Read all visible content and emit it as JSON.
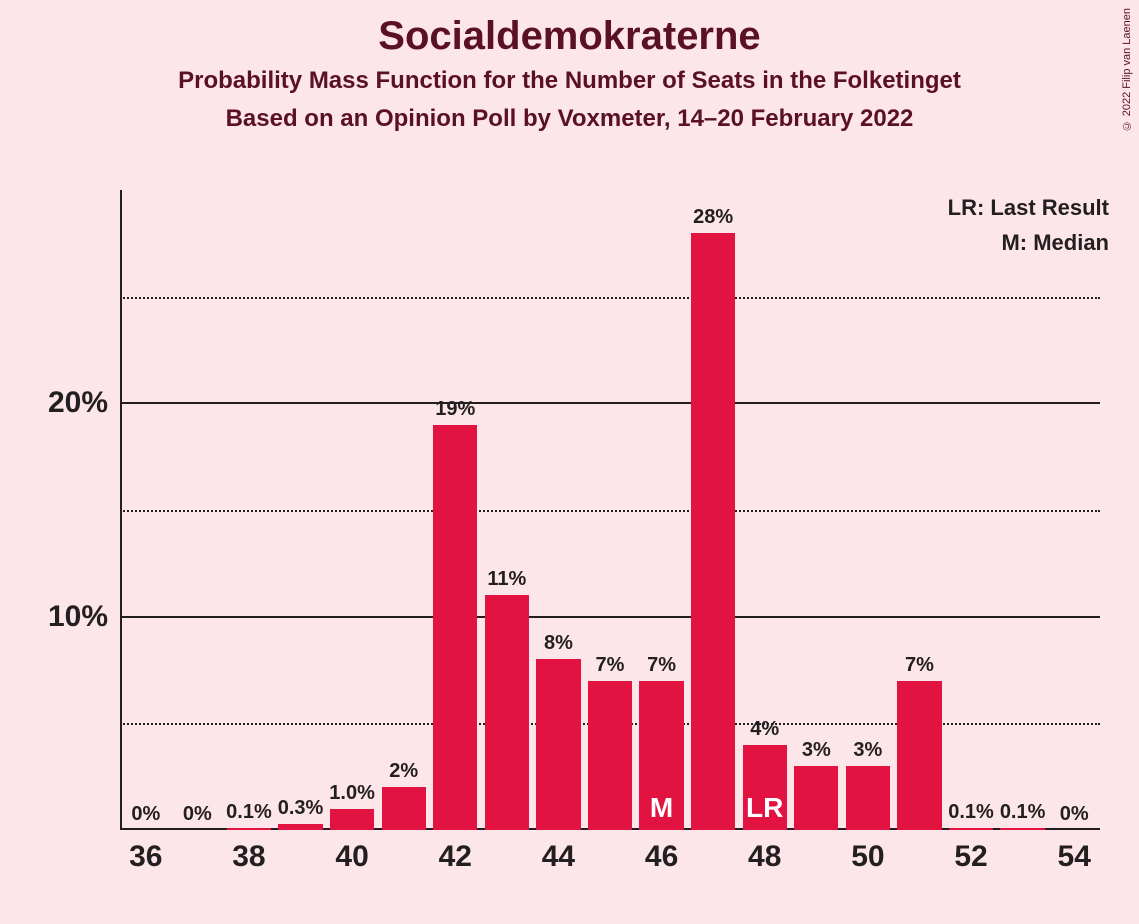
{
  "title": "Socialdemokraterne",
  "subtitle1": "Probability Mass Function for the Number of Seats in the Folketinget",
  "subtitle2": "Based on an Opinion Poll by Voxmeter, 14–20 February 2022",
  "copyright": "© 2022 Filip van Laenen",
  "legend": {
    "lr": "LR: Last Result",
    "m": "M: Median"
  },
  "chart": {
    "type": "bar",
    "bar_color": "#e21340",
    "background_color": "#fce6ea",
    "axis_color": "#231f20",
    "grid_dotted_color": "#231f20",
    "title_color": "#5a1025",
    "title_fontsize": 40,
    "subtitle_fontsize": 24,
    "label_fontsize": 20,
    "axis_tick_fontsize": 30,
    "marker_fontsize": 28,
    "marker_color": "#ffffff",
    "y": {
      "min": 0,
      "max": 30,
      "solid_ticks": [
        10,
        20
      ],
      "dotted_ticks": [
        5,
        15,
        25
      ],
      "tick_labels": {
        "10": "10%",
        "20": "20%"
      }
    },
    "x": {
      "min": 36,
      "max": 54,
      "tick_step": 2,
      "ticks": [
        36,
        38,
        40,
        42,
        44,
        46,
        48,
        50,
        52,
        54
      ]
    },
    "bar_width_ratio": 0.86,
    "bars": [
      {
        "x": 36,
        "value": 0,
        "label": "0%"
      },
      {
        "x": 37,
        "value": 0,
        "label": "0%"
      },
      {
        "x": 38,
        "value": 0.1,
        "label": "0.1%"
      },
      {
        "x": 39,
        "value": 0.3,
        "label": "0.3%"
      },
      {
        "x": 40,
        "value": 1.0,
        "label": "1.0%"
      },
      {
        "x": 41,
        "value": 2,
        "label": "2%"
      },
      {
        "x": 42,
        "value": 19,
        "label": "19%"
      },
      {
        "x": 43,
        "value": 11,
        "label": "11%"
      },
      {
        "x": 44,
        "value": 8,
        "label": "8%"
      },
      {
        "x": 45,
        "value": 7,
        "label": "7%"
      },
      {
        "x": 46,
        "value": 7,
        "label": "7%",
        "marker": "M"
      },
      {
        "x": 47,
        "value": 28,
        "label": "28%"
      },
      {
        "x": 48,
        "value": 4,
        "label": "4%",
        "marker": "LR"
      },
      {
        "x": 49,
        "value": 3,
        "label": "3%"
      },
      {
        "x": 50,
        "value": 3,
        "label": "3%"
      },
      {
        "x": 51,
        "value": 7,
        "label": "7%"
      },
      {
        "x": 52,
        "value": 0.1,
        "label": "0.1%"
      },
      {
        "x": 53,
        "value": 0.1,
        "label": "0.1%"
      },
      {
        "x": 54,
        "value": 0,
        "label": "0%"
      }
    ]
  }
}
